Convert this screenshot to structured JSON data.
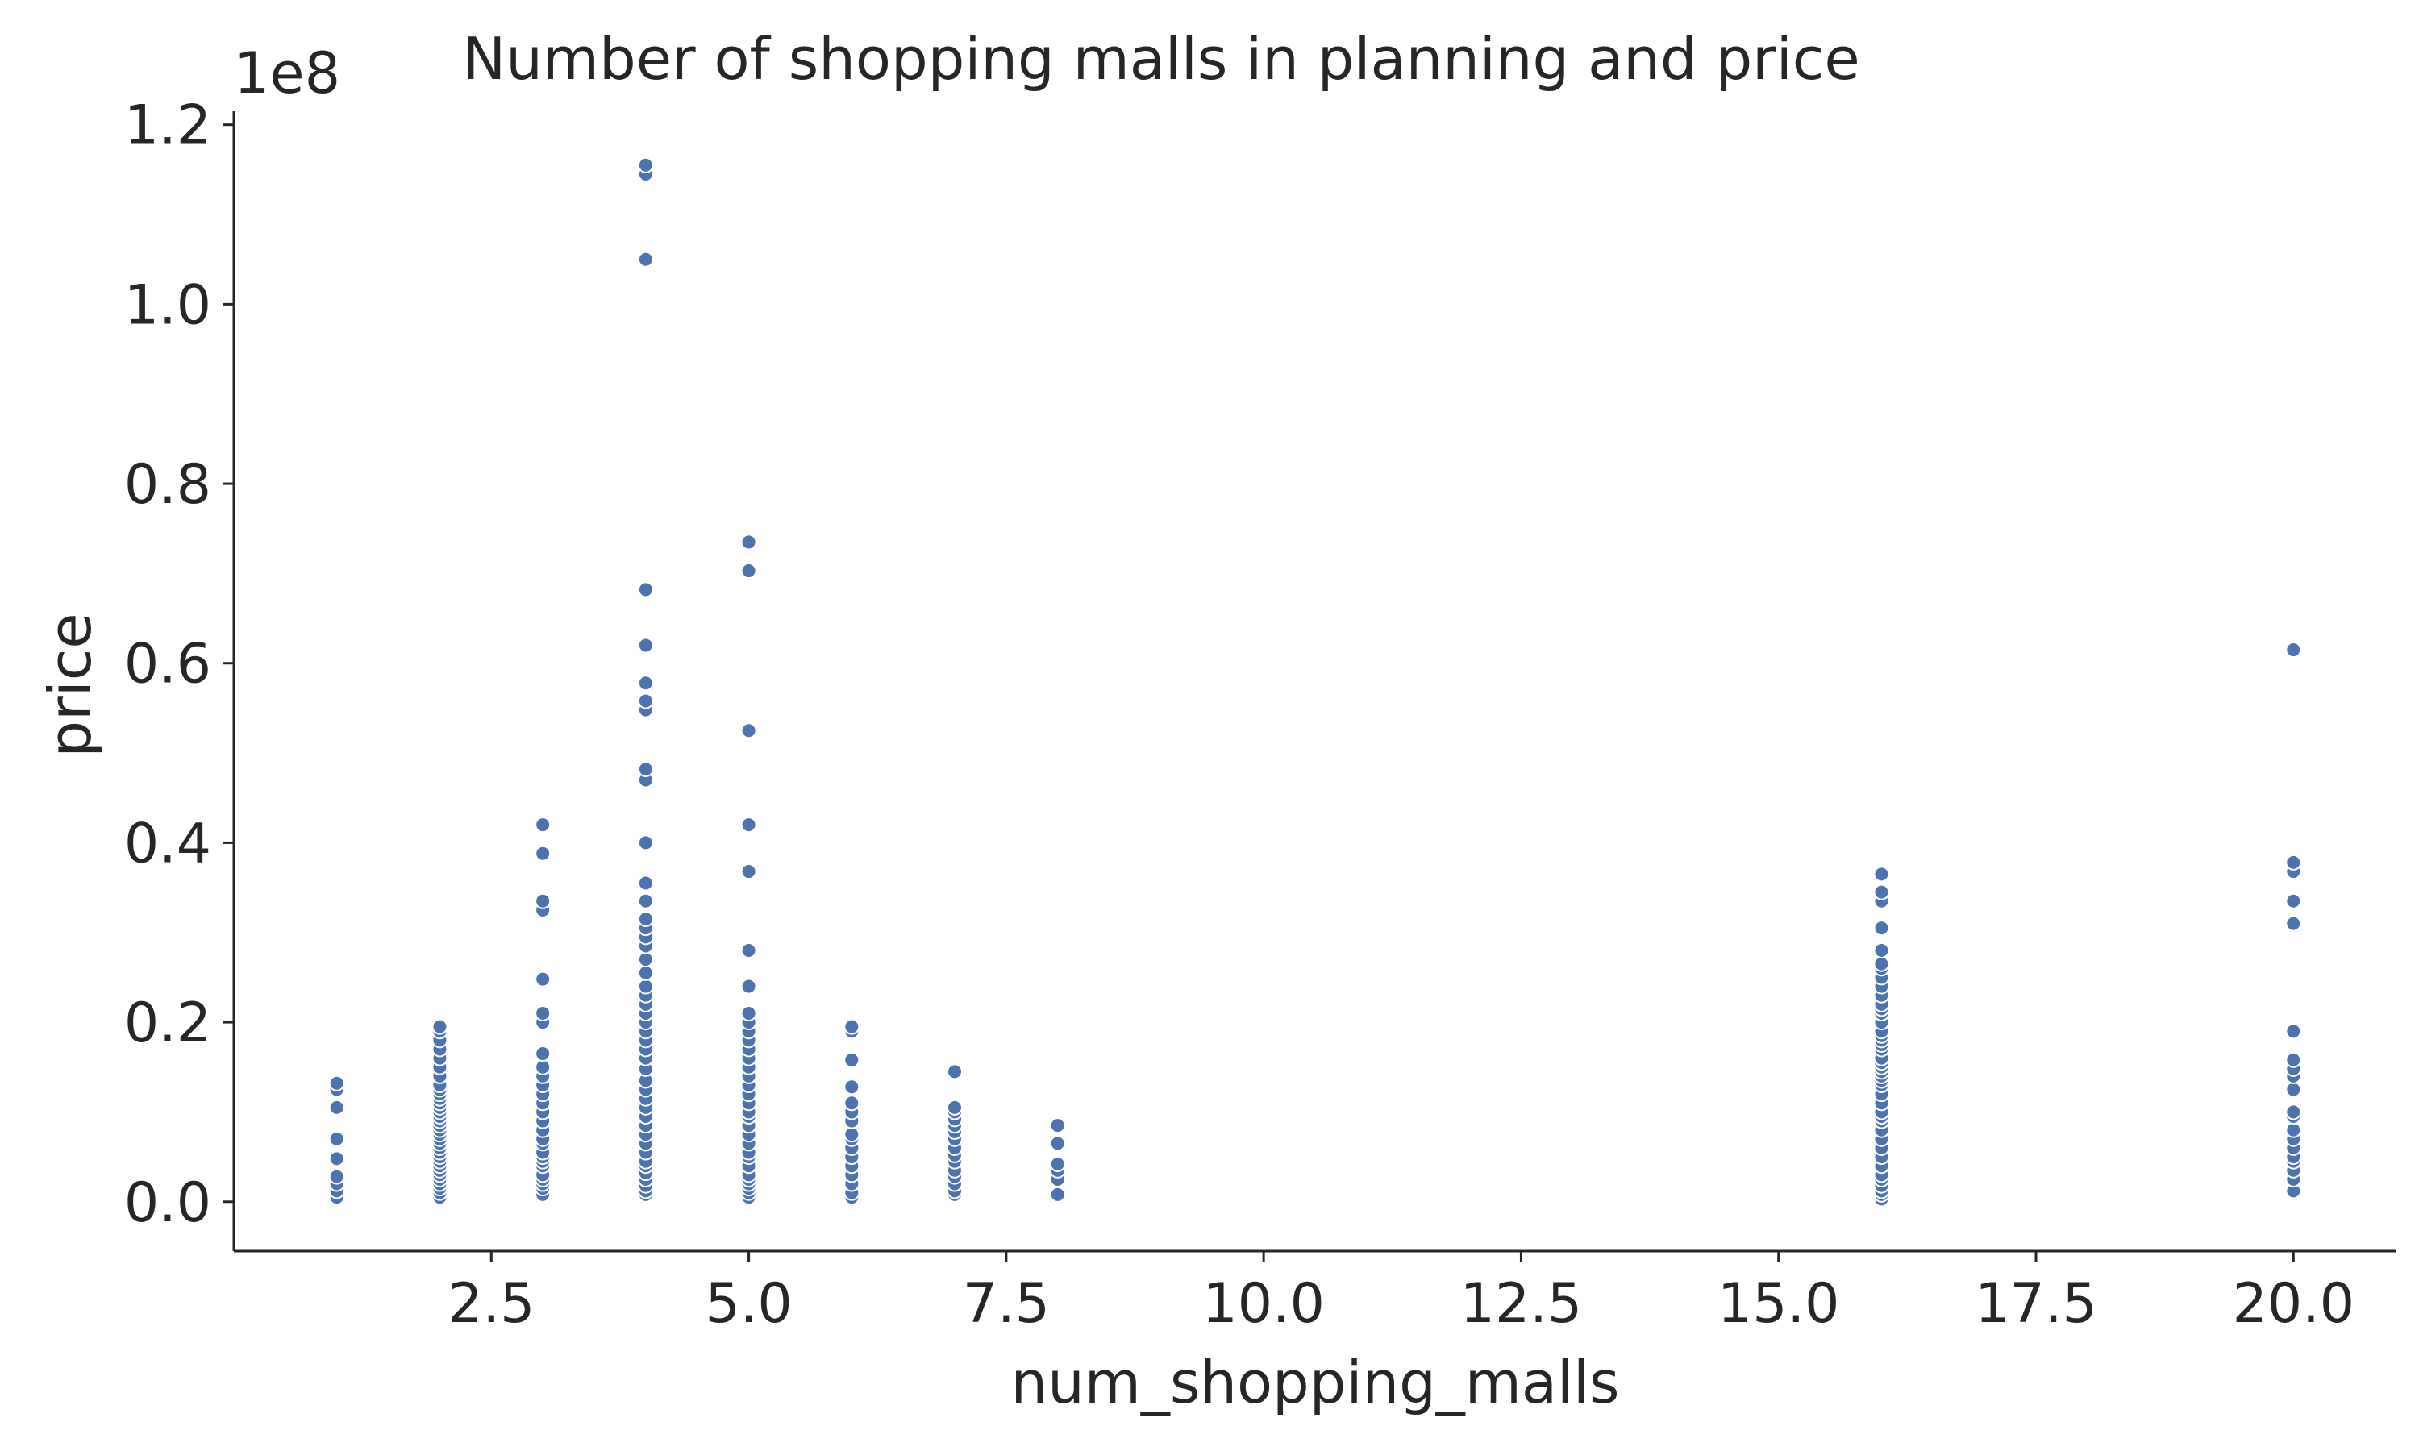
{
  "chart_data": {
    "type": "scatter",
    "title": "Number of shopping malls in planning and price",
    "xlabel": "num_shopping_malls",
    "ylabel": "price",
    "y_offset_label": "1e8",
    "xlim": [
      0.0,
      21.0
    ],
    "ylim": [
      -0.055,
      1.215
    ],
    "x_ticks": [
      2.5,
      5.0,
      7.5,
      10.0,
      12.5,
      15.0,
      17.5,
      20.0
    ],
    "x_tick_labels": [
      "2.5",
      "5.0",
      "7.5",
      "10.0",
      "12.5",
      "15.0",
      "17.5",
      "20.0"
    ],
    "y_ticks": [
      0.0,
      0.2,
      0.4,
      0.6,
      0.8,
      1.0,
      1.2
    ],
    "y_tick_labels": [
      "0.0",
      "0.2",
      "0.4",
      "0.6",
      "0.8",
      "1.0",
      "1.2"
    ],
    "grid": false,
    "marker_color": "#4c72b0",
    "y_unit_scale": 100000000,
    "columns": [
      {
        "x": 1,
        "y": [
          0.005,
          0.012,
          0.02,
          0.028,
          0.048,
          0.07,
          0.105,
          0.125,
          0.132
        ]
      },
      {
        "x": 2,
        "y": [
          0.005,
          0.01,
          0.015,
          0.02,
          0.025,
          0.03,
          0.035,
          0.04,
          0.045,
          0.05,
          0.055,
          0.06,
          0.065,
          0.07,
          0.075,
          0.08,
          0.085,
          0.09,
          0.095,
          0.1,
          0.105,
          0.11,
          0.115,
          0.12,
          0.125,
          0.13,
          0.14,
          0.15,
          0.16,
          0.17,
          0.18,
          0.19,
          0.195
        ]
      },
      {
        "x": 3,
        "y": [
          0.008,
          0.015,
          0.02,
          0.025,
          0.03,
          0.04,
          0.045,
          0.05,
          0.055,
          0.065,
          0.07,
          0.08,
          0.09,
          0.1,
          0.11,
          0.12,
          0.13,
          0.14,
          0.15,
          0.165,
          0.2,
          0.21,
          0.248,
          0.325,
          0.335,
          0.388,
          0.42
        ]
      },
      {
        "x": 4,
        "y": [
          0.008,
          0.012,
          0.018,
          0.025,
          0.032,
          0.04,
          0.045,
          0.055,
          0.065,
          0.075,
          0.085,
          0.095,
          0.105,
          0.115,
          0.125,
          0.135,
          0.148,
          0.16,
          0.17,
          0.18,
          0.19,
          0.2,
          0.21,
          0.22,
          0.23,
          0.24,
          0.255,
          0.27,
          0.285,
          0.295,
          0.305,
          0.315,
          0.335,
          0.355,
          0.4,
          0.47,
          0.482,
          0.548,
          0.558,
          0.578,
          0.62,
          0.682,
          1.05,
          1.145,
          1.155
        ]
      },
      {
        "x": 5,
        "y": [
          0.005,
          0.01,
          0.015,
          0.02,
          0.025,
          0.03,
          0.04,
          0.05,
          0.055,
          0.065,
          0.075,
          0.085,
          0.095,
          0.1,
          0.11,
          0.12,
          0.13,
          0.14,
          0.15,
          0.16,
          0.17,
          0.18,
          0.19,
          0.2,
          0.21,
          0.24,
          0.28,
          0.368,
          0.42,
          0.525,
          0.703,
          0.735
        ]
      },
      {
        "x": 6,
        "y": [
          0.005,
          0.01,
          0.02,
          0.03,
          0.04,
          0.05,
          0.06,
          0.07,
          0.075,
          0.09,
          0.1,
          0.11,
          0.128,
          0.158,
          0.19,
          0.195
        ]
      },
      {
        "x": 7,
        "y": [
          0.008,
          0.012,
          0.02,
          0.028,
          0.035,
          0.045,
          0.052,
          0.06,
          0.07,
          0.078,
          0.085,
          0.092,
          0.1,
          0.105,
          0.145
        ]
      },
      {
        "x": 8,
        "y": [
          0.008,
          0.025,
          0.035,
          0.042,
          0.065,
          0.085
        ]
      },
      {
        "x": 16,
        "y": [
          0.003,
          0.008,
          0.012,
          0.018,
          0.025,
          0.03,
          0.04,
          0.05,
          0.06,
          0.07,
          0.08,
          0.09,
          0.095,
          0.1,
          0.11,
          0.12,
          0.13,
          0.135,
          0.14,
          0.145,
          0.15,
          0.155,
          0.16,
          0.17,
          0.175,
          0.18,
          0.185,
          0.19,
          0.2,
          0.21,
          0.215,
          0.22,
          0.23,
          0.24,
          0.25,
          0.26,
          0.265,
          0.28,
          0.305,
          0.335,
          0.345,
          0.365
        ]
      },
      {
        "x": 20,
        "y": [
          0.012,
          0.025,
          0.035,
          0.045,
          0.05,
          0.06,
          0.07,
          0.08,
          0.095,
          0.1,
          0.125,
          0.14,
          0.148,
          0.158,
          0.19,
          0.31,
          0.335,
          0.368,
          0.378,
          0.615
        ]
      }
    ]
  }
}
